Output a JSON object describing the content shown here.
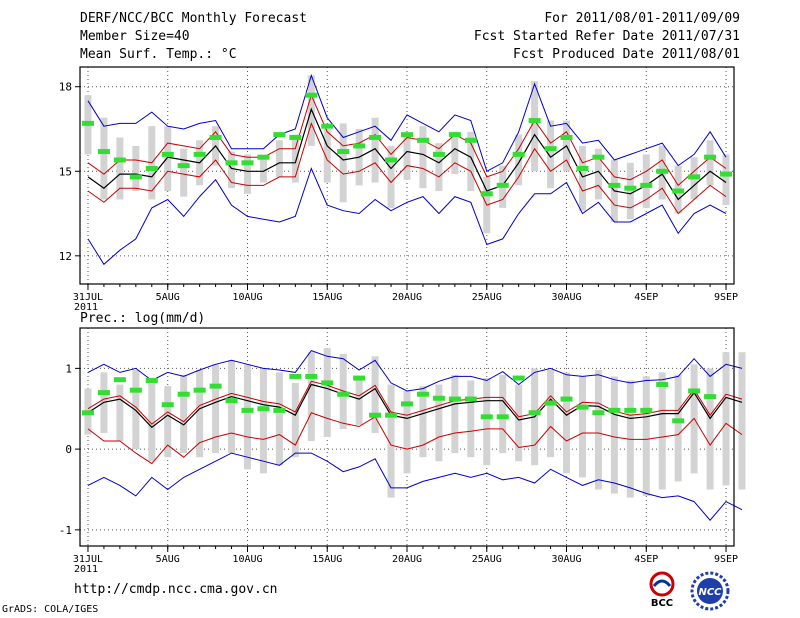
{
  "header": {
    "left": [
      "DERF/NCC/BCC Monthly Forecast",
      "Member Size=40",
      "Mean Surf. Temp.: °C"
    ],
    "right": [
      "For 2011/08/01-2011/09/09",
      "Fcst Started Refer Date 2011/07/31",
      "Fcst Produced Date 2011/08/01"
    ]
  },
  "footer": {
    "url": "http://cmdp.ncc.cma.gov.cn",
    "grads": "GrADS: COLA/IGES"
  },
  "logos": {
    "bcc": "BCC",
    "ncc": "NCC"
  },
  "colors": {
    "ensemble_mean": "#000000",
    "spread_inner": "#cc0000",
    "spread_outer": "#0000cc",
    "range_bar": "#d3d3d3",
    "observed": "#33dd33"
  },
  "chart_data": [
    {
      "type": "line",
      "title": "Mean Surf. Temp.: °C",
      "x_tick_labels": [
        "31JUL\n2011",
        "5AUG",
        "10AUG",
        "15AUG",
        "20AUG",
        "25AUG",
        "30AUG",
        "4SEP",
        "9SEP"
      ],
      "x_tick_days": [
        0,
        5,
        10,
        15,
        20,
        25,
        30,
        35,
        40
      ],
      "xlim": [
        -0.5,
        40.5
      ],
      "ylim": [
        11,
        18.7
      ],
      "yticks": [
        12,
        15,
        18
      ],
      "series": [
        {
          "name": "ensemble_mean",
          "values": [
            14.8,
            14.4,
            14.9,
            14.9,
            14.8,
            15.5,
            15.4,
            15.3,
            15.9,
            15.1,
            15.0,
            15.0,
            15.3,
            15.3,
            17.2,
            15.9,
            15.4,
            15.5,
            15.8,
            15.1,
            15.7,
            15.6,
            15.3,
            15.8,
            15.5,
            14.3,
            14.5,
            15.3,
            16.3,
            15.5,
            15.9,
            14.8,
            15.0,
            14.3,
            14.2,
            14.5,
            14.9,
            14.0,
            14.5,
            15.0,
            14.6
          ]
        },
        {
          "name": "upper_red",
          "values": [
            15.3,
            14.9,
            15.4,
            15.4,
            15.3,
            16.0,
            15.9,
            15.8,
            16.4,
            15.6,
            15.5,
            15.5,
            15.8,
            15.8,
            17.7,
            16.4,
            15.9,
            16.0,
            16.3,
            15.6,
            16.2,
            16.1,
            15.8,
            16.3,
            16.0,
            14.8,
            15.0,
            15.8,
            16.8,
            16.0,
            16.4,
            15.3,
            15.5,
            14.8,
            14.7,
            15.0,
            15.4,
            14.5,
            15.0,
            15.5,
            15.1
          ]
        },
        {
          "name": "lower_red",
          "values": [
            14.3,
            13.9,
            14.4,
            14.4,
            14.3,
            15.0,
            14.9,
            14.8,
            15.4,
            14.6,
            14.5,
            14.5,
            14.8,
            14.8,
            16.7,
            15.4,
            14.9,
            15.0,
            15.3,
            14.6,
            15.2,
            15.1,
            14.8,
            15.3,
            15.0,
            13.8,
            14.0,
            14.8,
            15.8,
            15.0,
            15.4,
            14.3,
            14.5,
            13.8,
            13.7,
            14.0,
            14.4,
            13.5,
            14.0,
            14.5,
            14.1
          ]
        },
        {
          "name": "upper_blue",
          "values": [
            17.5,
            16.6,
            16.7,
            16.7,
            17.1,
            16.6,
            16.5,
            16.7,
            16.8,
            15.8,
            15.8,
            15.8,
            16.3,
            16.5,
            18.4,
            16.9,
            16.2,
            16.4,
            16.6,
            16.1,
            17.0,
            16.7,
            16.4,
            17.0,
            16.8,
            15.0,
            15.3,
            16.4,
            18.1,
            16.6,
            16.7,
            16.0,
            16.1,
            15.4,
            15.6,
            15.8,
            16.0,
            15.2,
            15.6,
            16.4,
            15.5
          ]
        },
        {
          "name": "lower_blue",
          "values": [
            12.6,
            11.7,
            12.2,
            12.6,
            13.7,
            14.0,
            13.4,
            14.1,
            14.7,
            13.8,
            13.4,
            13.3,
            13.2,
            13.4,
            15.1,
            13.8,
            13.6,
            13.5,
            14.0,
            13.6,
            13.9,
            14.1,
            13.5,
            14.1,
            13.9,
            12.4,
            12.6,
            13.5,
            14.2,
            14.2,
            14.6,
            13.5,
            13.9,
            13.2,
            13.2,
            13.5,
            13.8,
            12.8,
            13.5,
            13.8,
            13.5
          ]
        },
        {
          "name": "range_high",
          "values": [
            17.7,
            16.9,
            16.2,
            15.9,
            16.6,
            16.6,
            15.8,
            16.1,
            16.6,
            15.7,
            15.6,
            15.5,
            16.1,
            16.3,
            18.4,
            16.5,
            16.7,
            16.5,
            16.9,
            15.9,
            16.3,
            16.6,
            16.0,
            16.4,
            16.4,
            14.8,
            15.2,
            16.3,
            18.2,
            16.8,
            16.8,
            15.9,
            15.8,
            15.4,
            15.3,
            15.6,
            15.9,
            15.2,
            15.5,
            16.1,
            15.6
          ]
        },
        {
          "name": "range_low",
          "values": [
            15.6,
            14.0,
            14.0,
            14.3,
            14.0,
            14.3,
            14.1,
            14.5,
            15.2,
            14.4,
            14.2,
            14.6,
            14.8,
            14.6,
            15.9,
            14.6,
            13.9,
            14.5,
            14.6,
            13.7,
            14.7,
            14.4,
            14.3,
            14.9,
            14.3,
            12.8,
            13.7,
            14.5,
            15.0,
            14.4,
            15.0,
            13.6,
            14.0,
            13.2,
            13.3,
            13.7,
            14.0,
            13.5,
            14.0,
            14.5,
            13.8
          ]
        },
        {
          "name": "observed",
          "values": [
            16.7,
            15.7,
            15.4,
            14.8,
            15.1,
            15.6,
            15.2,
            15.6,
            16.2,
            15.3,
            15.3,
            15.5,
            16.3,
            16.2,
            17.7,
            16.6,
            15.7,
            15.9,
            16.2,
            15.4,
            16.3,
            16.1,
            15.6,
            16.3,
            16.1,
            14.2,
            14.5,
            15.6,
            16.8,
            15.8,
            16.2,
            15.1,
            15.5,
            14.5,
            14.4,
            14.5,
            15.0,
            14.3,
            14.8,
            15.5,
            14.9
          ]
        }
      ]
    },
    {
      "type": "line",
      "title": "Prec.: log(mm/d)",
      "x_tick_labels": [
        "31JUL\n2011",
        "5AUG",
        "10AUG",
        "15AUG",
        "20AUG",
        "25AUG",
        "30AUG",
        "4SEP",
        "9SEP"
      ],
      "x_tick_days": [
        0,
        5,
        10,
        15,
        20,
        25,
        30,
        35,
        40
      ],
      "xlim": [
        -0.5,
        40.5
      ],
      "ylim": [
        -1.2,
        1.5
      ],
      "yticks": [
        -1,
        0,
        1
      ],
      "series": [
        {
          "name": "ensemble_mean",
          "values": [
            0.45,
            0.58,
            0.62,
            0.48,
            0.27,
            0.42,
            0.3,
            0.5,
            0.58,
            0.65,
            0.6,
            0.55,
            0.52,
            0.42,
            0.8,
            0.75,
            0.68,
            0.62,
            0.75,
            0.42,
            0.38,
            0.44,
            0.5,
            0.56,
            0.58,
            0.6,
            0.6,
            0.36,
            0.4,
            0.62,
            0.42,
            0.54,
            0.53,
            0.43,
            0.38,
            0.4,
            0.44,
            0.44,
            0.7,
            0.38,
            0.64,
            0.58
          ]
        },
        {
          "name": "upper_red",
          "values": [
            0.5,
            0.62,
            0.66,
            0.52,
            0.31,
            0.46,
            0.34,
            0.54,
            0.62,
            0.69,
            0.64,
            0.59,
            0.56,
            0.46,
            0.84,
            0.79,
            0.72,
            0.66,
            0.79,
            0.46,
            0.42,
            0.48,
            0.54,
            0.6,
            0.62,
            0.64,
            0.64,
            0.4,
            0.44,
            0.66,
            0.46,
            0.58,
            0.57,
            0.47,
            0.42,
            0.44,
            0.48,
            0.48,
            0.74,
            0.42,
            0.68,
            0.62
          ]
        },
        {
          "name": "lower_red",
          "values": [
            0.25,
            0.1,
            0.1,
            -0.05,
            -0.18,
            0.05,
            -0.1,
            0.08,
            0.15,
            0.2,
            0.15,
            0.12,
            0.18,
            0.05,
            0.45,
            0.38,
            0.32,
            0.28,
            0.4,
            0.05,
            0.0,
            0.05,
            0.15,
            0.2,
            0.22,
            0.25,
            0.25,
            0.02,
            0.05,
            0.28,
            0.1,
            0.2,
            0.2,
            0.15,
            0.12,
            0.12,
            0.15,
            0.18,
            0.38,
            0.05,
            0.32,
            0.18
          ]
        },
        {
          "name": "upper_blue",
          "values": [
            0.95,
            1.05,
            0.95,
            1.0,
            0.85,
            0.95,
            0.9,
            0.98,
            1.05,
            1.1,
            1.05,
            1.0,
            0.98,
            0.95,
            1.22,
            1.15,
            1.12,
            0.98,
            1.1,
            0.82,
            0.72,
            0.75,
            0.84,
            0.9,
            0.9,
            0.85,
            0.96,
            0.8,
            0.95,
            1.0,
            0.92,
            0.9,
            0.92,
            0.86,
            0.82,
            0.85,
            0.86,
            0.9,
            1.12,
            0.9,
            1.05,
            1.0
          ]
        },
        {
          "name": "lower_blue",
          "values": [
            -0.45,
            -0.35,
            -0.45,
            -0.58,
            -0.35,
            -0.5,
            -0.35,
            -0.25,
            -0.15,
            -0.05,
            -0.1,
            -0.15,
            -0.2,
            -0.05,
            -0.05,
            -0.15,
            -0.28,
            -0.22,
            -0.12,
            -0.48,
            -0.48,
            -0.4,
            -0.35,
            -0.3,
            -0.35,
            -0.3,
            -0.38,
            -0.35,
            -0.42,
            -0.25,
            -0.35,
            -0.45,
            -0.38,
            -0.42,
            -0.48,
            -0.55,
            -0.6,
            -0.58,
            -0.65,
            -0.88,
            -0.65,
            -0.75
          ]
        },
        {
          "name": "range_high",
          "values": [
            0.75,
            0.95,
            0.8,
            0.98,
            0.85,
            0.78,
            0.92,
            0.98,
            1.05,
            1.1,
            1.05,
            1.0,
            0.95,
            0.82,
            1.2,
            1.25,
            1.18,
            0.9,
            1.15,
            0.8,
            0.72,
            0.78,
            0.8,
            0.92,
            0.85,
            0.88,
            0.92,
            0.8,
            1.0,
            0.98,
            0.95,
            0.9,
            0.98,
            0.9,
            0.85,
            0.9,
            0.95,
            0.92,
            1.05,
            1.0,
            1.2,
            1.2
          ]
        },
        {
          "name": "range_low",
          "values": [
            0.18,
            0.2,
            0.1,
            0.0,
            -0.15,
            -0.1,
            -0.05,
            -0.1,
            -0.05,
            -0.05,
            -0.25,
            -0.3,
            -0.2,
            -0.1,
            0.1,
            0.15,
            0.25,
            0.3,
            0.2,
            -0.6,
            -0.3,
            -0.1,
            -0.15,
            -0.05,
            -0.1,
            -0.2,
            -0.05,
            -0.15,
            -0.2,
            -0.1,
            -0.3,
            -0.35,
            -0.5,
            -0.55,
            -0.6,
            -0.58,
            -0.5,
            -0.4,
            -0.3,
            -0.5,
            -0.45,
            -0.5
          ]
        },
        {
          "name": "observed",
          "values": [
            0.45,
            0.7,
            0.86,
            0.73,
            0.85,
            0.55,
            0.68,
            0.73,
            0.78,
            0.6,
            0.48,
            0.5,
            0.48,
            0.9,
            0.9,
            0.82,
            0.68,
            0.88,
            0.42,
            0.42,
            0.56,
            0.68,
            0.63,
            0.62,
            0.62,
            0.4,
            0.4,
            0.88,
            0.45,
            0.57,
            0.62,
            0.52,
            0.45,
            0.48,
            0.48,
            0.48,
            0.8,
            0.35,
            0.72,
            0.65
          ]
        }
      ]
    }
  ]
}
